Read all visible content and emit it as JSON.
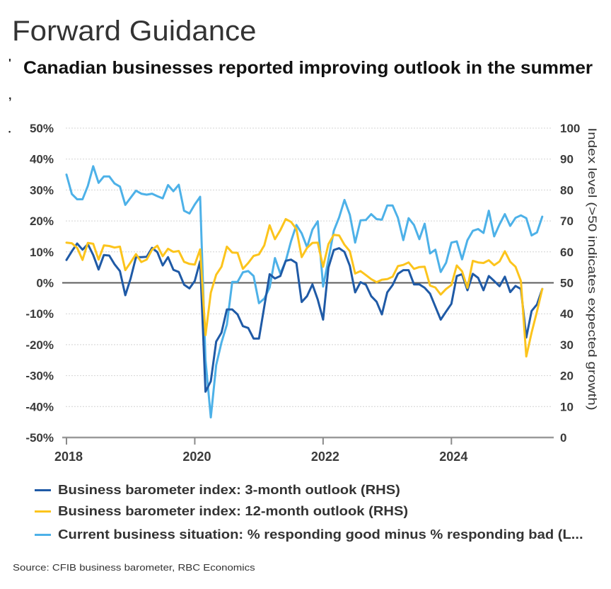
{
  "header": {
    "title": "Forward Guidance",
    "subtitle": "Canadian businesses reported improving outlook in the summer",
    "bullet_marks": [
      "'",
      ",",
      "•"
    ]
  },
  "chart_data": {
    "type": "line",
    "title": "Canadian businesses reported improving outlook in the summer",
    "xlabel": "",
    "ylabel": "",
    "y2label": "Index level (>50 indicates expected growth)",
    "ylim": [
      -50,
      50
    ],
    "y2lim": [
      0,
      100
    ],
    "yticks": [
      50,
      40,
      30,
      20,
      10,
      0,
      -10,
      -20,
      -30,
      -40,
      -50
    ],
    "ytick_labels": [
      "50%",
      "40%",
      "30%",
      "20%",
      "10%",
      "0%",
      "-10%",
      "-20%",
      "-30%",
      "-40%",
      "-50%"
    ],
    "y2ticks": [
      100,
      90,
      80,
      70,
      60,
      50,
      40,
      30,
      20,
      10,
      0
    ],
    "y2tick_labels": [
      "100",
      "90",
      "80",
      "70",
      "60",
      "50",
      "40",
      "30",
      "20",
      "10",
      "0"
    ],
    "xticks": [
      "2018",
      "2020",
      "2022",
      "2024"
    ],
    "xtick_positions": [
      "2018-01",
      "2020-01",
      "2022-01",
      "2024-01"
    ],
    "reference_line": 0,
    "grid": true,
    "legend": "bottom",
    "frequency": "monthly",
    "x": [
      "2018-01",
      "2018-02",
      "2018-03",
      "2018-04",
      "2018-05",
      "2018-06",
      "2018-07",
      "2018-08",
      "2018-09",
      "2018-10",
      "2018-11",
      "2018-12",
      "2019-01",
      "2019-02",
      "2019-03",
      "2019-04",
      "2019-05",
      "2019-06",
      "2019-07",
      "2019-08",
      "2019-09",
      "2019-10",
      "2019-11",
      "2019-12",
      "2020-01",
      "2020-02",
      "2020-03",
      "2020-04",
      "2020-05",
      "2020-06",
      "2020-07",
      "2020-08",
      "2020-09",
      "2020-10",
      "2020-11",
      "2020-12",
      "2021-01",
      "2021-02",
      "2021-03",
      "2021-04",
      "2021-05",
      "2021-06",
      "2021-07",
      "2021-08",
      "2021-09",
      "2021-10",
      "2021-11",
      "2021-12",
      "2022-01",
      "2022-02",
      "2022-03",
      "2022-04",
      "2022-05",
      "2022-06",
      "2022-07",
      "2022-08",
      "2022-09",
      "2022-10",
      "2022-11",
      "2022-12",
      "2023-01",
      "2023-02",
      "2023-03",
      "2023-04",
      "2023-05",
      "2023-06",
      "2023-07",
      "2023-08",
      "2023-09",
      "2023-10",
      "2023-11",
      "2023-12",
      "2024-01",
      "2024-02",
      "2024-03",
      "2024-04",
      "2024-05",
      "2024-06",
      "2024-07",
      "2024-08",
      "2024-09",
      "2024-10",
      "2024-11",
      "2024-12",
      "2025-01",
      "2025-02",
      "2025-03",
      "2025-04",
      "2025-05",
      "2025-06"
    ],
    "series": [
      {
        "id": "3-month-outlook",
        "name": "Business barometer index: 3-month outlook (RHS)",
        "axis": "right",
        "color": "#1f5aa6",
        "values": [
          57.4,
          60.2,
          62.7,
          60.7,
          62.5,
          59.0,
          54.3,
          59.0,
          58.8,
          56.0,
          53.8,
          46.0,
          51.4,
          58.3,
          58.3,
          58.4,
          61.3,
          59.9,
          55.6,
          58.3,
          54.2,
          53.5,
          49.4,
          48.2,
          50.6,
          57.0,
          14.8,
          18.2,
          31.0,
          33.9,
          41.4,
          41.4,
          39.8,
          36.0,
          35.4,
          32.0,
          32.0,
          42.3,
          52.8,
          51.4,
          52.2,
          57.1,
          57.5,
          56.4,
          43.8,
          45.7,
          49.5,
          44.6,
          38.1,
          54.9,
          60.6,
          61.2,
          60.0,
          55.5,
          46.9,
          50.2,
          49.4,
          45.7,
          43.9,
          39.8,
          46.9,
          49.3,
          52.9,
          54.1,
          54.1,
          49.5,
          49.5,
          48.4,
          46.5,
          42.3,
          38.1,
          40.7,
          43.2,
          52.2,
          52.8,
          47.6,
          52.9,
          51.6,
          47.6,
          52.2,
          50.6,
          48.9,
          52.0,
          47.0,
          49.0,
          48.0,
          32.3,
          40.9,
          43.0,
          48.0
        ]
      },
      {
        "id": "12-month-outlook",
        "name": "Business barometer index: 12-month outlook (RHS)",
        "axis": "right",
        "color": "#fcc41c",
        "values": [
          63.0,
          62.8,
          61.3,
          57.4,
          62.9,
          62.6,
          57.5,
          62.1,
          61.9,
          61.4,
          61.7,
          54.1,
          56.6,
          59.3,
          56.7,
          57.5,
          60.7,
          62.0,
          58.6,
          61.0,
          60.0,
          60.3,
          56.8,
          56.1,
          55.9,
          60.8,
          33.1,
          46.8,
          52.6,
          55.2,
          61.7,
          59.8,
          59.7,
          54.5,
          56.4,
          58.7,
          59.2,
          62.1,
          68.6,
          64.1,
          67.0,
          70.6,
          69.7,
          67.4,
          58.3,
          61.3,
          62.9,
          63.0,
          55.2,
          62.5,
          65.5,
          65.3,
          62.3,
          60.2,
          53.0,
          53.8,
          52.5,
          51.2,
          50.2,
          51.0,
          51.2,
          52.0,
          55.4,
          55.8,
          56.6,
          54.5,
          55.1,
          55.2,
          49.1,
          48.5,
          46.2,
          48.0,
          49.3,
          55.6,
          53.7,
          48.4,
          57.1,
          56.6,
          56.4,
          57.3,
          55.7,
          56.9,
          60.2,
          56.8,
          55.2,
          50.6,
          26.2,
          33.9,
          40.7,
          48.0
        ]
      },
      {
        "id": "current-situation",
        "name": "Current business situation: % responding good minus % responding bad (L...",
        "axis": "left",
        "color": "#4db1e8",
        "values": [
          35.0,
          28.7,
          27.0,
          27.0,
          31.3,
          37.7,
          32.3,
          34.4,
          34.4,
          32.1,
          31.1,
          25.2,
          27.5,
          29.8,
          28.8,
          28.5,
          28.8,
          28.0,
          27.3,
          31.6,
          29.6,
          31.7,
          23.3,
          22.4,
          25.3,
          27.8,
          -25.0,
          -43.5,
          -26.6,
          -19.3,
          -13.5,
          0.3,
          0.3,
          3.4,
          3.8,
          2.2,
          -6.6,
          -5.1,
          -1.5,
          8.0,
          3.0,
          7.0,
          13.4,
          18.7,
          16.0,
          11.5,
          17.2,
          19.9,
          -1.2,
          7.5,
          16.8,
          21.2,
          26.8,
          22.0,
          13.0,
          20.2,
          20.3,
          22.2,
          20.6,
          20.4,
          25.0,
          25.0,
          21.0,
          13.8,
          20.9,
          18.7,
          14.1,
          19.1,
          9.5,
          10.7,
          3.5,
          6.5,
          13.0,
          13.4,
          7.6,
          13.8,
          16.8,
          17.4,
          16.1,
          23.3,
          15.0,
          18.9,
          22.2,
          18.4,
          21.0,
          21.8,
          20.9,
          15.3,
          16.3,
          21.4
        ]
      }
    ]
  },
  "source": "Source: CFIB business barometer, RBC Economics"
}
